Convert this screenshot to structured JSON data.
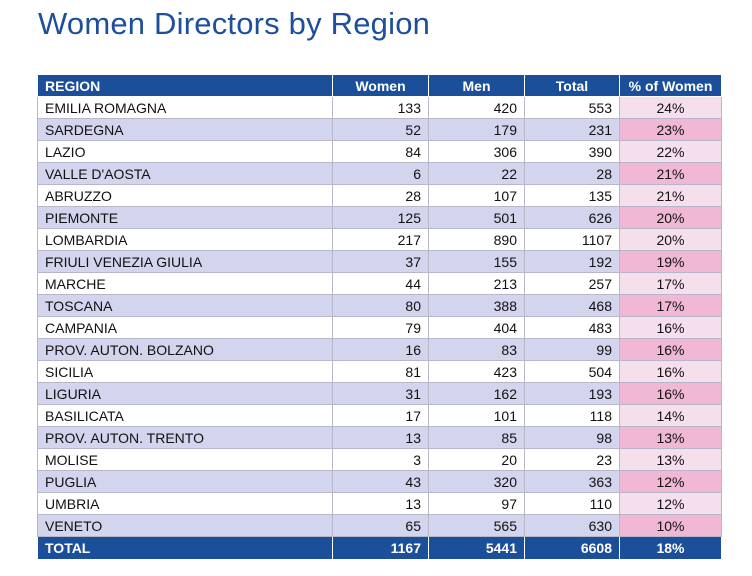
{
  "title": "Women Directors by Region",
  "chart_data": {
    "type": "table",
    "title": "Women Directors by Region",
    "columns": [
      "REGION",
      "Women",
      "Men",
      "Total",
      "% of Women"
    ],
    "rows": [
      [
        "EMILIA ROMAGNA",
        "133",
        "420",
        "553",
        "24%"
      ],
      [
        "SARDEGNA",
        "52",
        "179",
        "231",
        "23%"
      ],
      [
        "LAZIO",
        "84",
        "306",
        "390",
        "22%"
      ],
      [
        "VALLE D'AOSTA",
        "6",
        "22",
        "28",
        "21%"
      ],
      [
        "ABRUZZO",
        "28",
        "107",
        "135",
        "21%"
      ],
      [
        "PIEMONTE",
        "125",
        "501",
        "626",
        "20%"
      ],
      [
        "LOMBARDIA",
        "217",
        "890",
        "1107",
        "20%"
      ],
      [
        "FRIULI VENEZIA GIULIA",
        "37",
        "155",
        "192",
        "19%"
      ],
      [
        "MARCHE",
        "44",
        "213",
        "257",
        "17%"
      ],
      [
        "TOSCANA",
        "80",
        "388",
        "468",
        "17%"
      ],
      [
        "CAMPANIA",
        "79",
        "404",
        "483",
        "16%"
      ],
      [
        "PROV. AUTON. BOLZANO",
        "16",
        "83",
        "99",
        "16%"
      ],
      [
        "SICILIA",
        "81",
        "423",
        "504",
        "16%"
      ],
      [
        "LIGURIA",
        "31",
        "162",
        "193",
        "16%"
      ],
      [
        "BASILICATA",
        "17",
        "101",
        "118",
        "14%"
      ],
      [
        "PROV. AUTON. TRENTO",
        "13",
        "85",
        "98",
        "13%"
      ],
      [
        "MOLISE",
        "3",
        "20",
        "23",
        "13%"
      ],
      [
        "PUGLIA",
        "43",
        "320",
        "363",
        "12%"
      ],
      [
        "UMBRIA",
        "13",
        "97",
        "110",
        "12%"
      ],
      [
        "VENETO",
        "65",
        "565",
        "630",
        "10%"
      ]
    ],
    "total": [
      "TOTAL",
      "1167",
      "5441",
      "6608",
      "18%"
    ],
    "colors": {
      "header": "#1c4f99",
      "title": "#1d4f9c",
      "row_alt": "#d3d4ee",
      "pct_light": "#f6dfec",
      "pct_dark": "#f0b8d5"
    }
  }
}
